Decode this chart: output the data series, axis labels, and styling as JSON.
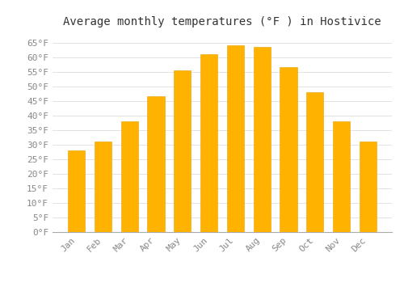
{
  "title": "Average monthly temperatures (°F ) in Hostivice",
  "months": [
    "Jan",
    "Feb",
    "Mar",
    "Apr",
    "May",
    "Jun",
    "Jul",
    "Aug",
    "Sep",
    "Oct",
    "Nov",
    "Dec"
  ],
  "values": [
    28,
    31,
    38,
    46.5,
    55.5,
    61,
    64,
    63.5,
    56.5,
    48,
    38,
    31
  ],
  "bar_color_top": "#FFB300",
  "bar_color_bottom": "#FFD966",
  "bar_edge_color": "#E8A000",
  "background_color": "#FFFFFF",
  "grid_color": "#DDDDDD",
  "ylim": [
    0,
    68
  ],
  "yticks": [
    0,
    5,
    10,
    15,
    20,
    25,
    30,
    35,
    40,
    45,
    50,
    55,
    60,
    65
  ],
  "title_fontsize": 10,
  "tick_fontsize": 8,
  "tick_font_color": "#888888",
  "title_color": "#333333"
}
